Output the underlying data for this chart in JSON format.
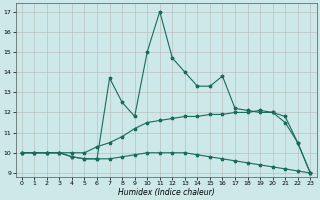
{
  "xlabel": "Humidex (Indice chaleur)",
  "background_color": "#cce8e8",
  "grid_color": "#b8b8b8",
  "line_color": "#1a6b5a",
  "xlim_min": -0.5,
  "xlim_max": 23.5,
  "ylim_min": 8.8,
  "ylim_max": 17.4,
  "xticks": [
    0,
    1,
    2,
    3,
    4,
    5,
    6,
    7,
    8,
    9,
    10,
    11,
    12,
    13,
    14,
    15,
    16,
    17,
    18,
    19,
    20,
    21,
    22,
    23
  ],
  "yticks": [
    9,
    10,
    11,
    12,
    13,
    14,
    15,
    16,
    17
  ],
  "curve_bottom_x": [
    0,
    1,
    2,
    3,
    4,
    5,
    6,
    7,
    8,
    9,
    10,
    11,
    12,
    13,
    14,
    15,
    16,
    17,
    18,
    19,
    20,
    21,
    22,
    23
  ],
  "curve_bottom_y": [
    10.0,
    10.0,
    10.0,
    10.0,
    9.8,
    9.7,
    9.7,
    9.7,
    9.8,
    9.9,
    10.0,
    10.0,
    10.0,
    10.0,
    9.9,
    9.8,
    9.7,
    9.6,
    9.5,
    9.4,
    9.3,
    9.2,
    9.1,
    9.0
  ],
  "curve_mid_x": [
    0,
    1,
    2,
    3,
    4,
    5,
    6,
    7,
    8,
    9,
    10,
    11,
    12,
    13,
    14,
    15,
    16,
    17,
    18,
    19,
    20,
    21,
    22,
    23
  ],
  "curve_mid_y": [
    10.0,
    10.0,
    10.0,
    10.0,
    10.0,
    10.0,
    10.3,
    10.5,
    10.8,
    11.2,
    11.5,
    11.6,
    11.7,
    11.8,
    11.8,
    11.9,
    11.9,
    12.0,
    12.0,
    12.1,
    12.0,
    11.8,
    10.5,
    9.0
  ],
  "curve_top_x": [
    0,
    1,
    2,
    3,
    4,
    5,
    6,
    7,
    8,
    9,
    10,
    11,
    12,
    13,
    14,
    15,
    16,
    17,
    18,
    19,
    20,
    21,
    22,
    23
  ],
  "curve_top_y": [
    10.0,
    10.0,
    10.0,
    10.0,
    9.8,
    9.7,
    9.7,
    13.7,
    12.5,
    11.8,
    15.0,
    17.0,
    14.7,
    14.0,
    13.3,
    13.3,
    13.8,
    12.2,
    12.1,
    12.0,
    12.0,
    11.5,
    10.5,
    9.0
  ]
}
